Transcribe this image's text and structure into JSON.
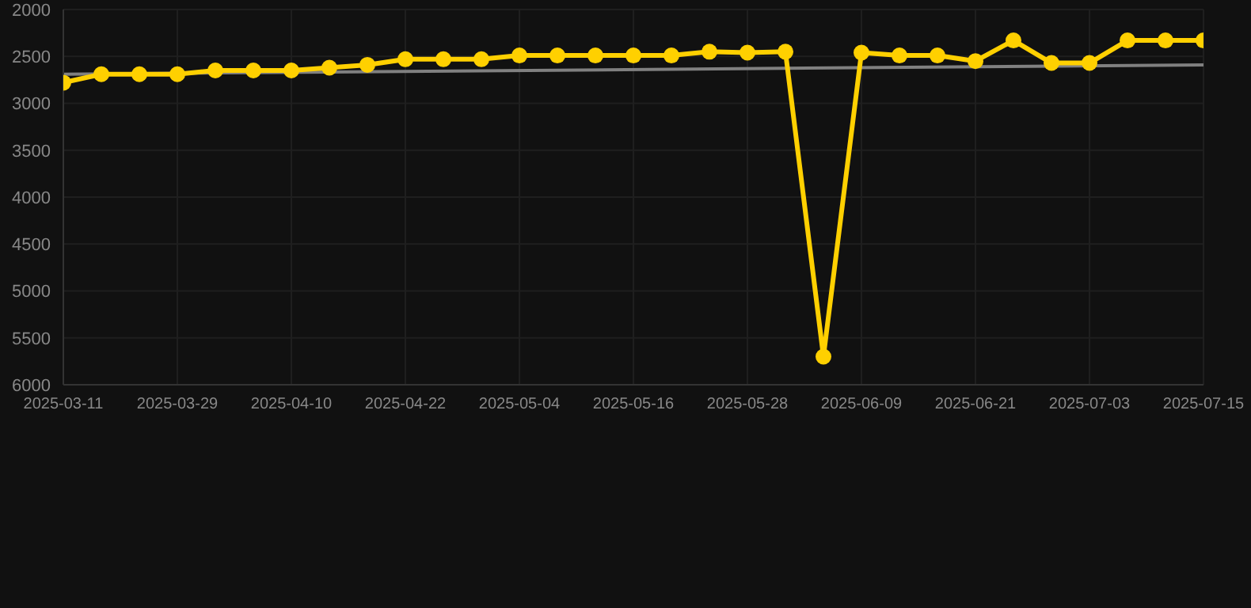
{
  "chart_data": {
    "type": "line",
    "categories": [
      "2025-03-11",
      null,
      null,
      "2025-03-29",
      null,
      null,
      "2025-04-10",
      null,
      null,
      "2025-04-22",
      null,
      null,
      "2025-05-04",
      null,
      null,
      "2025-05-16",
      null,
      null,
      "2025-05-28",
      null,
      null,
      "2025-06-09",
      null,
      null,
      "2025-06-21",
      null,
      null,
      "2025-07-03",
      null,
      null,
      "2025-07-15"
    ],
    "series": [
      {
        "color": "#ffd000",
        "marker": "circle",
        "values": [
          2780,
          2690,
          2690,
          2690,
          2650,
          2650,
          2650,
          2620,
          2590,
          2530,
          2530,
          2530,
          2490,
          2490,
          2490,
          2490,
          2490,
          2450,
          2460,
          2450,
          5700,
          2460,
          2490,
          2490,
          2550,
          2330,
          2570,
          2570,
          2330,
          2330,
          2330
        ]
      },
      {
        "color": "#808080",
        "marker": "none",
        "values": [
          2690,
          null,
          null,
          null,
          null,
          null,
          null,
          null,
          null,
          null,
          null,
          null,
          null,
          null,
          null,
          null,
          null,
          null,
          null,
          null,
          null,
          null,
          null,
          null,
          null,
          null,
          null,
          null,
          null,
          null,
          2590
        ]
      }
    ],
    "ylim": [
      6000,
      2000
    ],
    "yticks": [
      2000,
      2500,
      3000,
      3500,
      4000,
      4500,
      5000,
      5500,
      6000
    ],
    "grid": true
  }
}
